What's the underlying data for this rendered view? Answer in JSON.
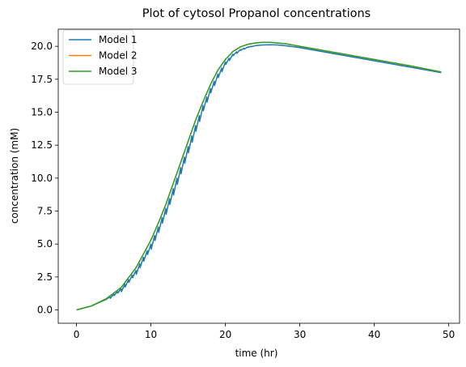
{
  "chart_data": {
    "type": "line",
    "title": "Plot of cytosol Propanol concentrations",
    "xlabel": "time (hr)",
    "ylabel": "concentration (mM)",
    "xlim": [
      -2.45,
      51.45
    ],
    "ylim": [
      -1.01,
      21.3
    ],
    "xticks": [
      0,
      10,
      20,
      30,
      40,
      50
    ],
    "yticks": [
      0.0,
      2.5,
      5.0,
      7.5,
      10.0,
      12.5,
      15.0,
      17.5,
      20.0
    ],
    "xtick_labels": [
      "0",
      "10",
      "20",
      "30",
      "40",
      "50"
    ],
    "ytick_labels": [
      "0.0",
      "2.5",
      "5.0",
      "7.5",
      "10.0",
      "12.5",
      "15.0",
      "17.5",
      "20.0"
    ],
    "grid": false,
    "legend": "top-left",
    "series": [
      {
        "name": "Model 1",
        "color": "#1f77b4",
        "sawtooth": true,
        "x": [
          0,
          2,
          4,
          6,
          8,
          10,
          11,
          12,
          13,
          14,
          15,
          16,
          17,
          18,
          19,
          20,
          21,
          22,
          23,
          24,
          25,
          26,
          27,
          28,
          30,
          32,
          35,
          40,
          45,
          49
        ],
        "y": [
          0.0,
          0.3,
          0.8,
          1.6,
          3.0,
          5.0,
          6.3,
          7.7,
          9.2,
          10.8,
          12.4,
          14.0,
          15.5,
          16.8,
          17.9,
          18.8,
          19.4,
          19.75,
          19.95,
          20.05,
          20.1,
          20.12,
          20.1,
          20.05,
          19.9,
          19.7,
          19.4,
          18.9,
          18.4,
          18.0
        ]
      },
      {
        "name": "Model 2",
        "color": "#ff7f0e",
        "x": [
          0,
          2,
          4,
          6,
          8,
          10,
          11,
          12,
          13,
          14,
          15,
          16,
          17,
          18,
          19,
          20,
          21,
          22,
          23,
          24,
          25,
          26,
          27,
          28,
          30,
          32,
          35,
          40,
          45,
          49
        ],
        "y": [
          0.0,
          0.3,
          0.85,
          1.7,
          3.2,
          5.3,
          6.6,
          8.0,
          9.6,
          11.2,
          12.8,
          14.4,
          15.8,
          17.1,
          18.2,
          19.0,
          19.6,
          19.95,
          20.15,
          20.25,
          20.3,
          20.3,
          20.25,
          20.2,
          20.0,
          19.8,
          19.5,
          19.0,
          18.5,
          18.05
        ]
      },
      {
        "name": "Model 3",
        "color": "#2ca02c",
        "x": [
          0,
          2,
          4,
          6,
          8,
          10,
          11,
          12,
          13,
          14,
          15,
          16,
          17,
          18,
          19,
          20,
          21,
          22,
          23,
          24,
          25,
          26,
          27,
          28,
          30,
          32,
          35,
          40,
          45,
          49
        ],
        "y": [
          0.0,
          0.3,
          0.85,
          1.7,
          3.2,
          5.3,
          6.6,
          8.0,
          9.6,
          11.2,
          12.8,
          14.4,
          15.8,
          17.1,
          18.2,
          19.0,
          19.6,
          19.95,
          20.15,
          20.25,
          20.3,
          20.3,
          20.25,
          20.2,
          20.0,
          19.8,
          19.5,
          19.0,
          18.5,
          18.05
        ]
      }
    ]
  }
}
